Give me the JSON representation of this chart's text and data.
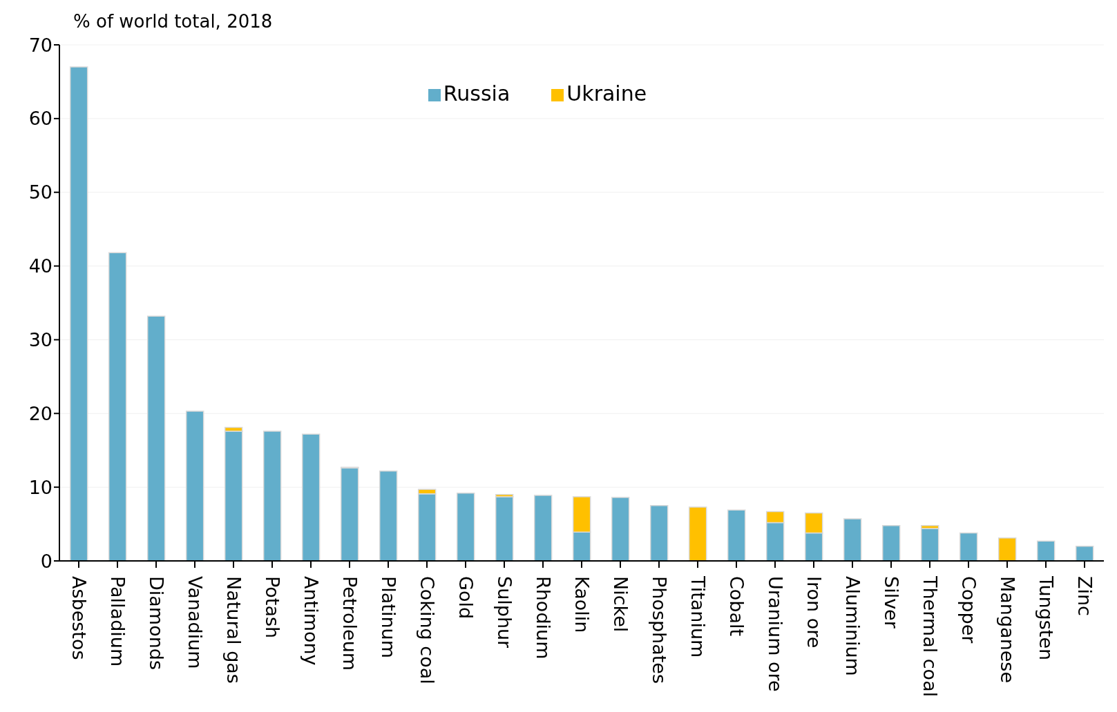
{
  "chart_data": {
    "type": "bar",
    "stacked": true,
    "ylabel": "% of world total, 2018",
    "categories": [
      "Asbestos",
      "Palladium",
      "Diamonds",
      "Vanadium",
      "Natural gas",
      "Potash",
      "Antimony",
      "Petroleum",
      "Platinum",
      "Coking coal",
      "Gold",
      "Sulphur",
      "Rhodium",
      "Kaolin",
      "Nickel",
      "Phosphates",
      "Titanium",
      "Cobalt",
      "Uranium ore",
      "Iron ore",
      "Aluminium",
      "Silver",
      "Thermal coal",
      "Copper",
      "Manganese",
      "Tungsten",
      "Zinc"
    ],
    "series": [
      {
        "name": "Russia",
        "color": "#62aecb",
        "values": [
          67.0,
          41.8,
          33.2,
          20.3,
          17.6,
          17.6,
          17.2,
          12.6,
          12.2,
          9.1,
          9.2,
          8.7,
          8.9,
          3.9,
          8.6,
          7.5,
          null,
          6.9,
          5.2,
          3.8,
          5.7,
          4.8,
          4.4,
          3.8,
          null,
          2.7,
          2.0
        ]
      },
      {
        "name": "Ukraine",
        "color": "#ffc000",
        "values": [
          null,
          null,
          null,
          null,
          0.5,
          null,
          null,
          0.1,
          null,
          0.6,
          null,
          0.3,
          null,
          4.8,
          null,
          null,
          7.3,
          null,
          1.5,
          2.7,
          null,
          null,
          0.4,
          null,
          3.1,
          null,
          null
        ]
      }
    ],
    "ylim": [
      0,
      70
    ],
    "yticks": [
      0,
      10,
      20,
      30,
      40,
      50,
      60,
      70
    ],
    "grid": "y",
    "legend": "top"
  }
}
